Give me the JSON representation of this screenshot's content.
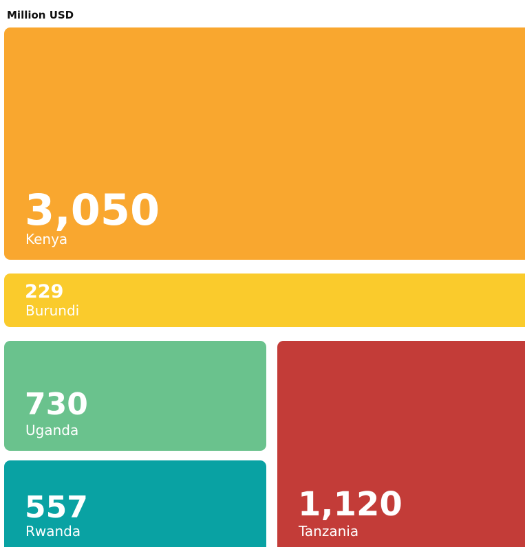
{
  "chart_data": {
    "type": "treemap",
    "title": "Million USD",
    "categories": [
      "Kenya",
      "Burundi",
      "Uganda",
      "Rwanda",
      "Tanzania"
    ],
    "values": [
      3050,
      229,
      730,
      557,
      1120
    ],
    "value_labels": [
      "3,050",
      "229",
      "730",
      "557",
      "1,120"
    ],
    "colors": [
      "#f9a72f",
      "#facb2c",
      "#6ac28d",
      "#09a2a3",
      "#c33c38"
    ]
  }
}
